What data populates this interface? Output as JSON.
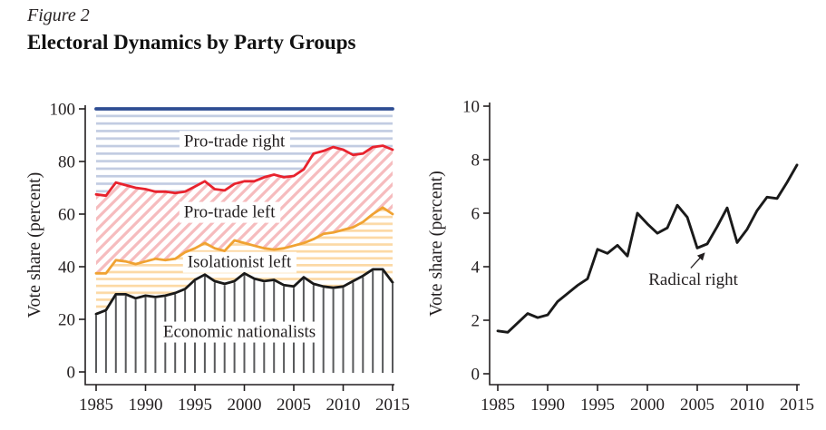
{
  "figure": {
    "label": "Figure 2",
    "title": "Electoral Dynamics by Party Groups"
  },
  "colors": {
    "navy": "#2e4d93",
    "blue_stripe": "#c2cce2",
    "red": "#e8222d",
    "pink_stripe": "#f6bcbe",
    "orange": "#f0a232",
    "orange_stripe": "#fcd9a5",
    "black_line": "#1a1a1a",
    "gray_stripe": "#58595b",
    "text": "#231f20",
    "background": "#ffffff"
  },
  "chart_data": [
    {
      "id": "party-groups-stacked",
      "type": "area",
      "title": "",
      "xlabel": "",
      "ylabel": "Vote share (percent)",
      "xlim": [
        1985,
        2015
      ],
      "ylim": [
        0,
        100
      ],
      "xticks": [
        1985,
        1990,
        1995,
        2000,
        2005,
        2010,
        2015
      ],
      "yticks": [
        0,
        20,
        40,
        60,
        80,
        100
      ],
      "grid": false,
      "legend": "region labels inside plot",
      "x": [
        1985,
        1986,
        1987,
        1988,
        1989,
        1990,
        1991,
        1992,
        1993,
        1994,
        1995,
        1996,
        1997,
        1998,
        1999,
        2000,
        2001,
        2002,
        2003,
        2004,
        2005,
        2006,
        2007,
        2008,
        2009,
        2010,
        2011,
        2012,
        2013,
        2014,
        2015
      ],
      "series": [
        {
          "name": "Total (top boundary, 100%)",
          "color_key": "navy",
          "values": [
            100,
            100,
            100,
            100,
            100,
            100,
            100,
            100,
            100,
            100,
            100,
            100,
            100,
            100,
            100,
            100,
            100,
            100,
            100,
            100,
            100,
            100,
            100,
            100,
            100,
            100,
            100,
            100,
            100,
            100,
            100
          ]
        },
        {
          "name": "Pro-trade left upper boundary (red line)",
          "color_key": "red",
          "values": [
            67.5,
            67,
            72,
            71,
            70,
            69.5,
            68.5,
            68.5,
            68,
            68.5,
            70.5,
            72.5,
            69.5,
            69,
            71.5,
            72.5,
            72.5,
            74,
            75,
            74,
            74.5,
            77,
            83,
            84,
            85.5,
            84.5,
            82.5,
            83,
            85.5,
            86,
            84.5
          ]
        },
        {
          "name": "Isolationist left upper boundary (orange line)",
          "color_key": "orange",
          "values": [
            37.5,
            37.5,
            42.5,
            42,
            41,
            42,
            43,
            42.5,
            43,
            45.5,
            47,
            49,
            47,
            46,
            50,
            49,
            48,
            47,
            46.5,
            47,
            48,
            49,
            50.5,
            52.5,
            53,
            54,
            55,
            57,
            60,
            62.5,
            60
          ]
        },
        {
          "name": "Economic nationalists upper boundary (black line)",
          "color_key": "black_line",
          "values": [
            22,
            23.5,
            29.5,
            29.5,
            28,
            29,
            28.5,
            29,
            30,
            31.5,
            35,
            37,
            34.5,
            33.5,
            34.5,
            37.5,
            35.5,
            34.5,
            35,
            33,
            32.5,
            36,
            33.5,
            32.5,
            32,
            32.5,
            34.5,
            36.5,
            39,
            39,
            34
          ]
        }
      ],
      "regions": [
        {
          "label": "Pro-trade right",
          "pattern": "blue-horizontal",
          "label_at": {
            "x": 1999,
            "y": 88
          }
        },
        {
          "label": "Pro-trade left",
          "pattern": "pink-diagonal",
          "label_at": {
            "x": 1998.5,
            "y": 61
          }
        },
        {
          "label": "Isolationist left",
          "pattern": "orange-horizontal",
          "label_at": {
            "x": 1999.5,
            "y": 42
          }
        },
        {
          "label": "Economic nationalists",
          "pattern": "gray-vertical",
          "label_at": {
            "x": 1999.5,
            "y": 15.5
          }
        }
      ]
    },
    {
      "id": "radical-right-line",
      "type": "line",
      "title": "",
      "xlabel": "",
      "ylabel": "Vote share (percent)",
      "xlim": [
        1985,
        2015
      ],
      "ylim": [
        0,
        10
      ],
      "xticks": [
        1985,
        1990,
        1995,
        2000,
        2005,
        2010,
        2015
      ],
      "yticks": [
        0,
        2,
        4,
        6,
        8,
        10
      ],
      "grid": false,
      "x": [
        1985,
        1986,
        1987,
        1988,
        1989,
        1990,
        1991,
        1992,
        1993,
        1994,
        1995,
        1996,
        1997,
        1998,
        1999,
        2000,
        2001,
        2002,
        2003,
        2004,
        2005,
        2006,
        2007,
        2008,
        2009,
        2010,
        2011,
        2012,
        2013,
        2014,
        2015
      ],
      "series": [
        {
          "name": "Radical right",
          "color_key": "black_line",
          "values": [
            1.6,
            1.55,
            1.9,
            2.25,
            2.1,
            2.2,
            2.7,
            3.0,
            3.3,
            3.55,
            4.65,
            4.5,
            4.8,
            4.4,
            6.0,
            5.6,
            5.25,
            5.45,
            6.3,
            5.85,
            4.7,
            4.85,
            5.5,
            6.2,
            4.9,
            5.4,
            6.1,
            6.6,
            6.55,
            7.15,
            7.8
          ]
        }
      ],
      "annotation": {
        "text": "Radical right",
        "text_at": {
          "x": 2004.6,
          "y": 3.55
        },
        "arrow_from": {
          "x": 2004.35,
          "y": 3.95
        },
        "arrow_to": {
          "x": 2005.7,
          "y": 4.5
        }
      }
    }
  ]
}
